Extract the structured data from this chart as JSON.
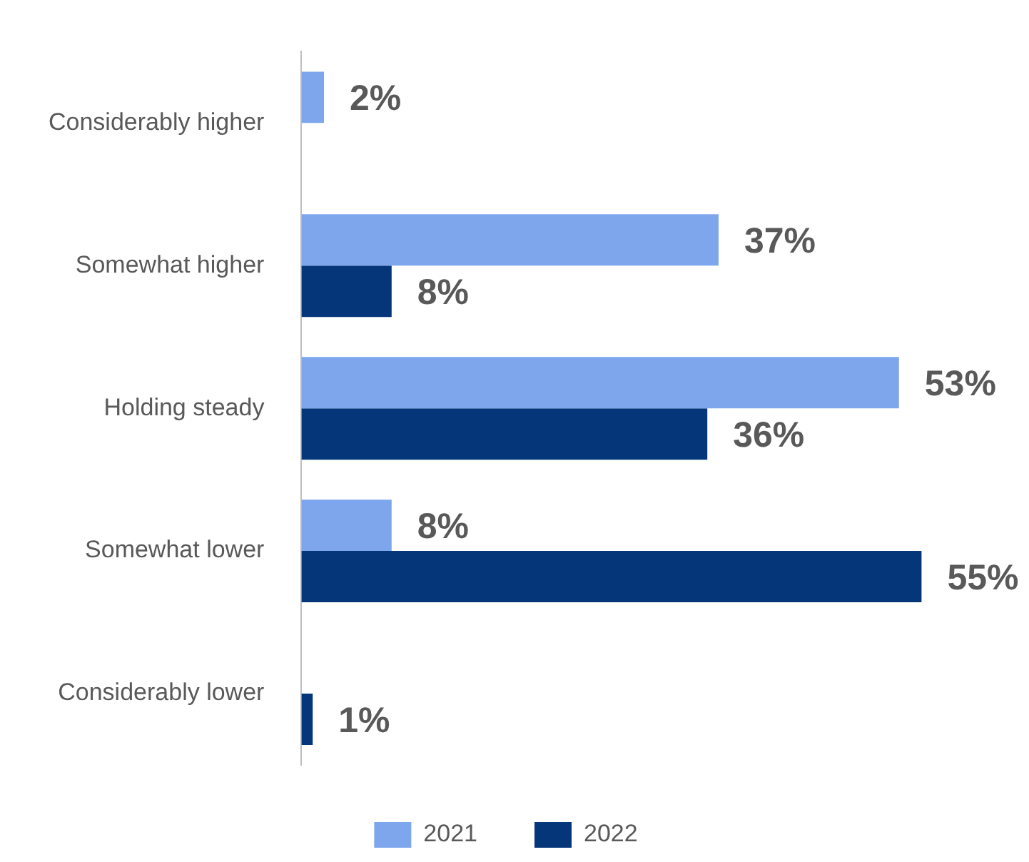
{
  "chart_data": {
    "type": "bar",
    "orientation": "horizontal",
    "categories": [
      "Considerably higher",
      "Somewhat higher",
      "Holding steady",
      "Somewhat lower",
      "Considerably lower"
    ],
    "series": [
      {
        "name": "2021",
        "color": "#7ea6ec",
        "values": [
          2,
          37,
          53,
          8,
          null
        ],
        "value_labels": [
          "2%",
          "37%",
          "53%",
          "8%",
          null
        ]
      },
      {
        "name": "2022",
        "color": "#06367a",
        "values": [
          null,
          8,
          36,
          55,
          1
        ],
        "value_labels": [
          null,
          "8%",
          "36%",
          "55%",
          "1%"
        ]
      }
    ],
    "grid": false,
    "legend": "bottom"
  }
}
